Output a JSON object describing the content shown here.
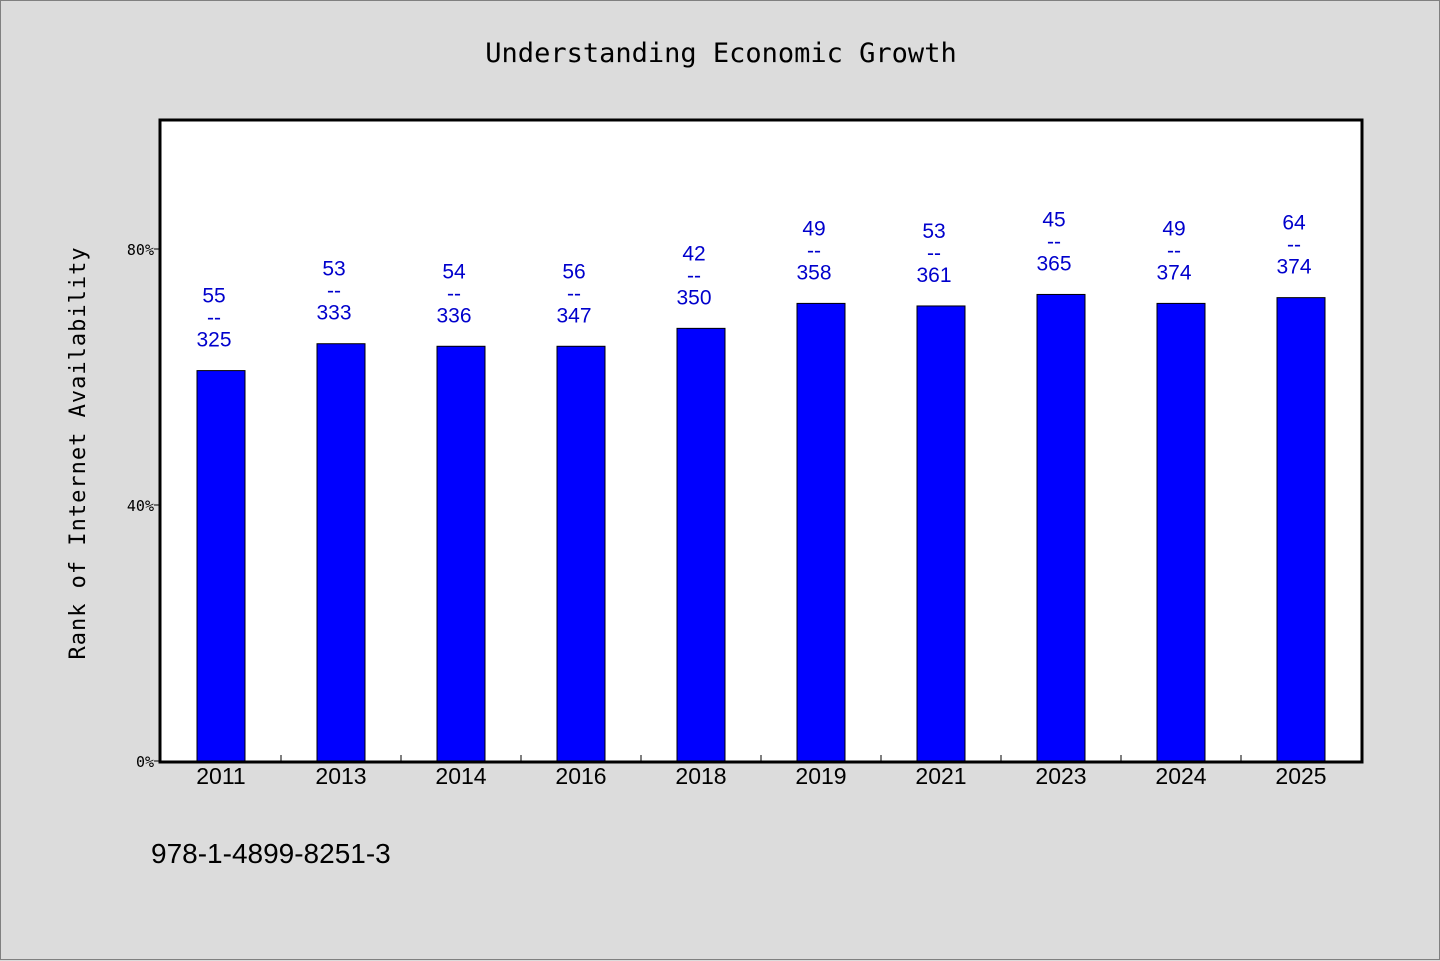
{
  "chart_data": {
    "type": "bar",
    "title": "Understanding Economic Growth",
    "ylabel": "Rank of Internet Availability",
    "xlabel": "",
    "categories": [
      "2011",
      "2013",
      "2014",
      "2016",
      "2018",
      "2019",
      "2021",
      "2023",
      "2024",
      "2025"
    ],
    "values": [
      61.0,
      65.2,
      64.8,
      64.8,
      67.6,
      71.5,
      71.1,
      72.9,
      71.5,
      72.4
    ],
    "data_labels": [
      {
        "top": "55",
        "mid": "--",
        "bottom": "325"
      },
      {
        "top": "53",
        "mid": "--",
        "bottom": "333"
      },
      {
        "top": "54",
        "mid": "--",
        "bottom": "336"
      },
      {
        "top": "56",
        "mid": "--",
        "bottom": "347"
      },
      {
        "top": "42",
        "mid": "--",
        "bottom": "350"
      },
      {
        "top": "49",
        "mid": "--",
        "bottom": "358"
      },
      {
        "top": "53",
        "mid": "--",
        "bottom": "361"
      },
      {
        "top": "45",
        "mid": "--",
        "bottom": "365"
      },
      {
        "top": "49",
        "mid": "--",
        "bottom": "374"
      },
      {
        "top": "64",
        "mid": "--",
        "bottom": "374"
      }
    ],
    "ylim": [
      0,
      100
    ],
    "yticks": [
      0,
      40,
      80
    ],
    "ytick_labels": [
      "0%",
      "40%",
      "80%"
    ],
    "grid": false,
    "legend": "none",
    "bar_color": "#0000ff",
    "label_color": "#0000cc",
    "background": "#dcdcdc",
    "plot_background": "#ffffff"
  },
  "footer": {
    "isbn": "978-1-4899-8251-3"
  }
}
